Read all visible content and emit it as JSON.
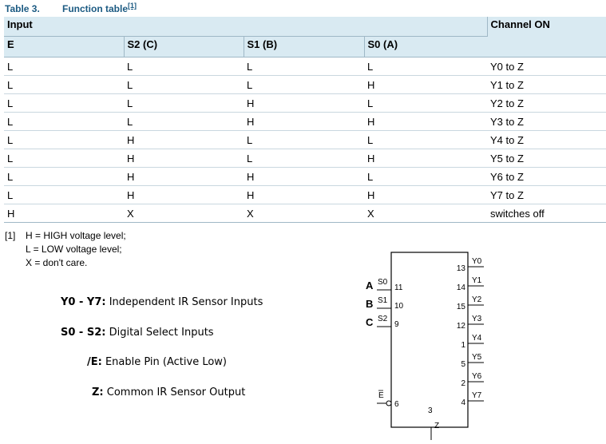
{
  "caption": {
    "number": "Table 3.",
    "title": "Function table",
    "footnote_ref": "[1]"
  },
  "table": {
    "group_header": "Input",
    "channel_header": "Channel ON",
    "columns": [
      "E",
      "S2 (C)",
      "S1 (B)",
      "S0  (A)"
    ],
    "rows": [
      [
        "L",
        "L",
        "L",
        "L",
        "Y0 to Z"
      ],
      [
        "L",
        "L",
        "L",
        "H",
        "Y1 to Z"
      ],
      [
        "L",
        "L",
        "H",
        "L",
        "Y2 to Z"
      ],
      [
        "L",
        "L",
        "H",
        "H",
        "Y3 to Z"
      ],
      [
        "L",
        "H",
        "L",
        "L",
        "Y4 to Z"
      ],
      [
        "L",
        "H",
        "L",
        "H",
        "Y5 to Z"
      ],
      [
        "L",
        "H",
        "H",
        "L",
        "Y6 to Z"
      ],
      [
        "L",
        "H",
        "H",
        "H",
        "Y7 to Z"
      ],
      [
        "H",
        "X",
        "X",
        "X",
        "switches off"
      ]
    ]
  },
  "notes": {
    "ref": "[1]",
    "lines": [
      "H = HIGH voltage level;",
      "L = LOW voltage level;",
      "X = don't care."
    ]
  },
  "legend": [
    {
      "term": "Y0 - Y7:",
      "desc": " Independent IR Sensor Inputs"
    },
    {
      "term": "S0 - S2:",
      "desc": " Digital Select Inputs"
    },
    {
      "term": "/E:",
      "desc": " Enable Pin (Active Low)"
    },
    {
      "term": "Z:",
      "desc": " Common IR Sensor Output"
    }
  ],
  "diagram": {
    "left_pins": [
      {
        "letter": "A",
        "name": "S0",
        "pin": "11"
      },
      {
        "letter": "B",
        "name": "S1",
        "pin": "10"
      },
      {
        "letter": "C",
        "name": "S2",
        "pin": "9"
      }
    ],
    "enable": {
      "name": "E",
      "pin": "6"
    },
    "bottom": {
      "name": "Z",
      "pin": "3"
    },
    "right_pins": [
      {
        "pin": "13",
        "name": "Y0"
      },
      {
        "pin": "14",
        "name": "Y1"
      },
      {
        "pin": "15",
        "name": "Y2"
      },
      {
        "pin": "12",
        "name": "Y3"
      },
      {
        "pin": "1",
        "name": "Y4"
      },
      {
        "pin": "5",
        "name": "Y5"
      },
      {
        "pin": "2",
        "name": "Y6"
      },
      {
        "pin": "4",
        "name": "Y7"
      }
    ]
  }
}
